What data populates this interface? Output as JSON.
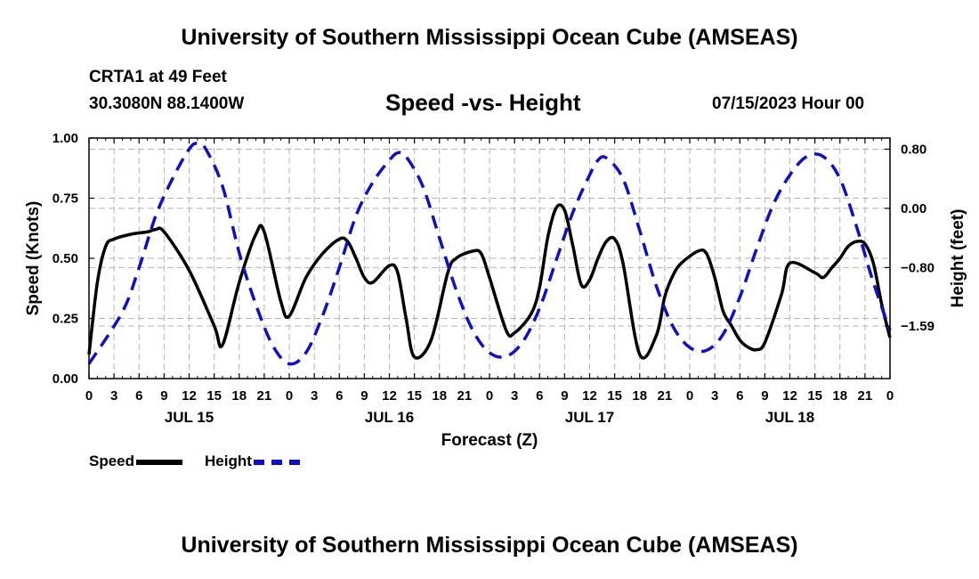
{
  "header": {
    "title": "University of Southern Mississippi Ocean Cube (AMSEAS)",
    "station": "CRTA1 at 49 Feet",
    "coords": "30.3080N  88.1400W",
    "issued": "07/15/2023 Hour 00"
  },
  "footer": {
    "title": "University of Southern Mississippi Ocean Cube (AMSEAS)"
  },
  "legend": {
    "speed_label": "Speed",
    "height_label": "Height"
  },
  "colors": {
    "speed": "#000000",
    "height": "#1010c0",
    "grid": "#b4b4b4"
  },
  "chart_data": {
    "type": "line",
    "title": "Speed -vs- Height",
    "xlabel": "Forecast (Z)",
    "ylabel": "Speed (Knots)",
    "y2label": "Height (feet)",
    "x_range": [
      0,
      96
    ],
    "x_tick_step": 3,
    "x_tick_labels": [
      "0",
      "3",
      "6",
      "9",
      "12",
      "15",
      "18",
      "21",
      "0",
      "3",
      "6",
      "9",
      "12",
      "15",
      "18",
      "21",
      "0",
      "3",
      "6",
      "9",
      "12",
      "15",
      "18",
      "21",
      "0",
      "3",
      "6",
      "9",
      "12",
      "15",
      "18",
      "21",
      "0"
    ],
    "day_labels": [
      {
        "hour": 12,
        "label": "JUL 15"
      },
      {
        "hour": 36,
        "label": "JUL 16"
      },
      {
        "hour": 60,
        "label": "JUL 17"
      },
      {
        "hour": 84,
        "label": "JUL 18"
      }
    ],
    "ylim": [
      0,
      1
    ],
    "y_ticks": [
      0,
      0.25,
      0.5,
      0.75,
      1.0
    ],
    "y_tick_labels": [
      "0.00",
      "0.25",
      "0.50",
      "0.75",
      "1.00"
    ],
    "y2lim": [
      -2.3,
      0.95
    ],
    "y2_ticks": [
      0.8,
      0.0,
      -0.8,
      -1.59
    ],
    "y2_tick_labels": [
      "0.80",
      "0.00",
      "−0.80",
      "−1.59"
    ],
    "series": [
      {
        "name": "Speed",
        "axis": "left",
        "dash": "solid",
        "x": [
          0,
          1,
          2,
          3,
          5,
          7,
          8,
          9,
          12,
          15,
          16,
          18,
          20,
          21,
          23,
          24,
          26,
          28,
          30,
          31,
          32,
          33,
          34,
          36,
          37,
          38,
          39,
          41,
          43,
          44,
          46,
          47,
          48,
          50,
          51,
          53,
          54,
          55,
          56,
          57,
          58,
          59,
          60,
          61,
          62,
          63,
          64,
          66,
          68,
          69,
          70,
          71,
          73,
          74,
          75,
          76,
          77,
          78,
          79,
          80,
          81,
          83,
          84,
          87,
          88,
          89,
          90,
          91,
          92,
          93,
          94,
          95,
          96
        ],
        "y": [
          0.1,
          0.4,
          0.55,
          0.58,
          0.6,
          0.61,
          0.62,
          0.61,
          0.45,
          0.22,
          0.14,
          0.4,
          0.6,
          0.61,
          0.32,
          0.26,
          0.42,
          0.52,
          0.58,
          0.57,
          0.5,
          0.42,
          0.4,
          0.47,
          0.44,
          0.25,
          0.09,
          0.16,
          0.44,
          0.5,
          0.53,
          0.52,
          0.42,
          0.2,
          0.19,
          0.27,
          0.38,
          0.59,
          0.71,
          0.7,
          0.55,
          0.39,
          0.41,
          0.5,
          0.57,
          0.58,
          0.48,
          0.1,
          0.18,
          0.34,
          0.43,
          0.48,
          0.53,
          0.52,
          0.42,
          0.28,
          0.22,
          0.16,
          0.13,
          0.12,
          0.15,
          0.35,
          0.48,
          0.44,
          0.42,
          0.46,
          0.5,
          0.55,
          0.57,
          0.56,
          0.48,
          0.31,
          0.17
        ]
      },
      {
        "name": "Height",
        "axis": "right",
        "dash": "dashed",
        "x": [
          0,
          4,
          6,
          8,
          10,
          12,
          13,
          14,
          16,
          18,
          20,
          22,
          24,
          26,
          28,
          30,
          32,
          34,
          36,
          37,
          38,
          40,
          42,
          44,
          46,
          48,
          50,
          52,
          54,
          56,
          58,
          60,
          61,
          62,
          64,
          66,
          68,
          70,
          72,
          74,
          76,
          78,
          80,
          82,
          84,
          86,
          88,
          90,
          92,
          94,
          96
        ],
        "y": [
          -2.1,
          -1.4,
          -0.8,
          -0.1,
          0.4,
          0.8,
          0.88,
          0.8,
          0.3,
          -0.6,
          -1.3,
          -1.85,
          -2.1,
          -1.95,
          -1.45,
          -0.8,
          -0.1,
          0.35,
          0.65,
          0.75,
          0.7,
          0.3,
          -0.4,
          -1.1,
          -1.65,
          -1.95,
          -2.0,
          -1.8,
          -1.35,
          -0.7,
          -0.05,
          0.45,
          0.65,
          0.68,
          0.4,
          -0.3,
          -1.05,
          -1.6,
          -1.88,
          -1.92,
          -1.7,
          -1.2,
          -0.55,
          0.05,
          0.45,
          0.7,
          0.7,
          0.4,
          -0.25,
          -1.0,
          -1.65
        ]
      }
    ]
  }
}
